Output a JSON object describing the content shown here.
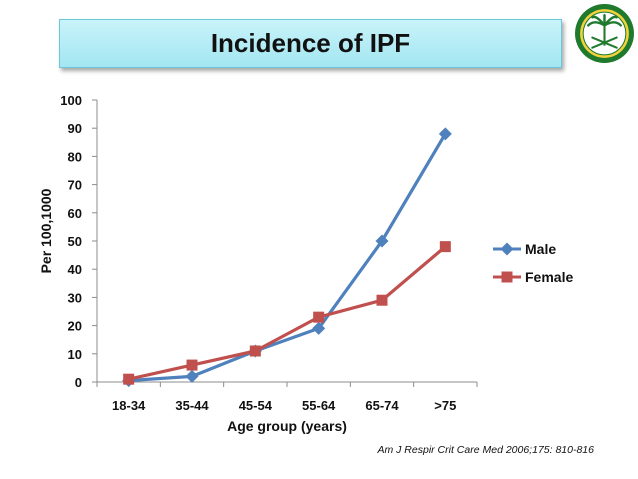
{
  "chart_data": {
    "type": "line",
    "title": "Incidence of IPF",
    "categories": [
      "18-34",
      "35-44",
      "45-54",
      "55-64",
      "65-74",
      ">75"
    ],
    "series": [
      {
        "name": "Male",
        "values": [
          0.5,
          2,
          11,
          19,
          50,
          88
        ],
        "color": "#4f81bd",
        "marker": "diamond"
      },
      {
        "name": "Female",
        "values": [
          1,
          6,
          11,
          23,
          29,
          48
        ],
        "color": "#c0504d",
        "marker": "square"
      }
    ],
    "xlabel": "Age group (years)",
    "ylabel": "Per 100,1000",
    "ylim": [
      0,
      100
    ],
    "yticks": [
      0,
      10,
      20,
      30,
      40,
      50,
      60,
      70,
      80,
      90,
      100
    ],
    "grid": false,
    "legend": "right"
  },
  "citation": "Am J Respir Crit Care Med 2006;175: 810-816",
  "logo": {
    "name": "saudi-emblem-seal",
    "colors": [
      "#1f7a2e",
      "#f2d23c"
    ]
  }
}
